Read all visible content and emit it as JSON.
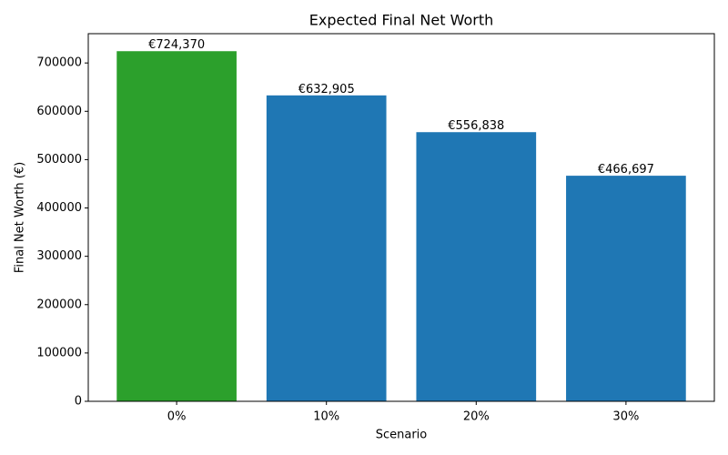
{
  "chart_data": {
    "type": "bar",
    "title": "Expected Final Net Worth",
    "xlabel": "Scenario",
    "ylabel": "Final Net Worth (€)",
    "categories": [
      "0%",
      "10%",
      "20%",
      "30%"
    ],
    "values": [
      724370,
      632905,
      556838,
      466697
    ],
    "value_labels": [
      "€724,370",
      "€632,905",
      "€556,838",
      "€466,697"
    ],
    "colors": [
      "#2ca02c",
      "#1f77b4",
      "#1f77b4",
      "#1f77b4"
    ],
    "ylim": [
      0,
      760589
    ],
    "yticks": [
      0,
      100000,
      200000,
      300000,
      400000,
      500000,
      600000,
      700000
    ],
    "grid": false
  }
}
